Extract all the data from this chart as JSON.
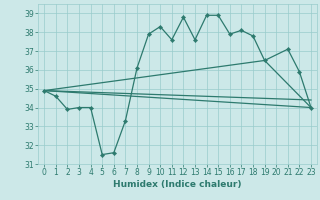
{
  "x": [
    0,
    1,
    2,
    3,
    4,
    5,
    6,
    7,
    8,
    9,
    10,
    11,
    12,
    13,
    14,
    15,
    16,
    17,
    18,
    19,
    20,
    21,
    22,
    23
  ],
  "line_wavy": [
    34.9,
    34.6,
    33.9,
    34.0,
    34.0,
    31.5,
    31.6,
    33.3,
    36.1,
    37.9,
    38.3,
    37.6,
    38.8,
    37.6,
    38.9,
    38.9,
    37.9,
    38.1,
    37.8,
    36.5,
    null,
    37.1,
    35.9,
    34.0
  ],
  "line_flat_low": [
    [
      0,
      34.9
    ],
    [
      23,
      34.0
    ]
  ],
  "line_flat_mid": [
    [
      0,
      34.9
    ],
    [
      23,
      34.4
    ]
  ],
  "line_upper": [
    [
      0,
      34.9
    ],
    [
      19,
      36.5
    ],
    [
      23,
      34.0
    ]
  ],
  "bg_color": "#cce8e8",
  "grid_color": "#99cccc",
  "line_color": "#2d7a6e",
  "xlabel": "Humidex (Indice chaleur)",
  "ylim": [
    31,
    39.5
  ],
  "xlim": [
    -0.5,
    23.5
  ],
  "yticks": [
    31,
    32,
    33,
    34,
    35,
    36,
    37,
    38,
    39
  ],
  "xticks": [
    0,
    1,
    2,
    3,
    4,
    5,
    6,
    7,
    8,
    9,
    10,
    11,
    12,
    13,
    14,
    15,
    16,
    17,
    18,
    19,
    20,
    21,
    22,
    23
  ],
  "tick_fontsize": 5.5,
  "xlabel_fontsize": 6.5
}
